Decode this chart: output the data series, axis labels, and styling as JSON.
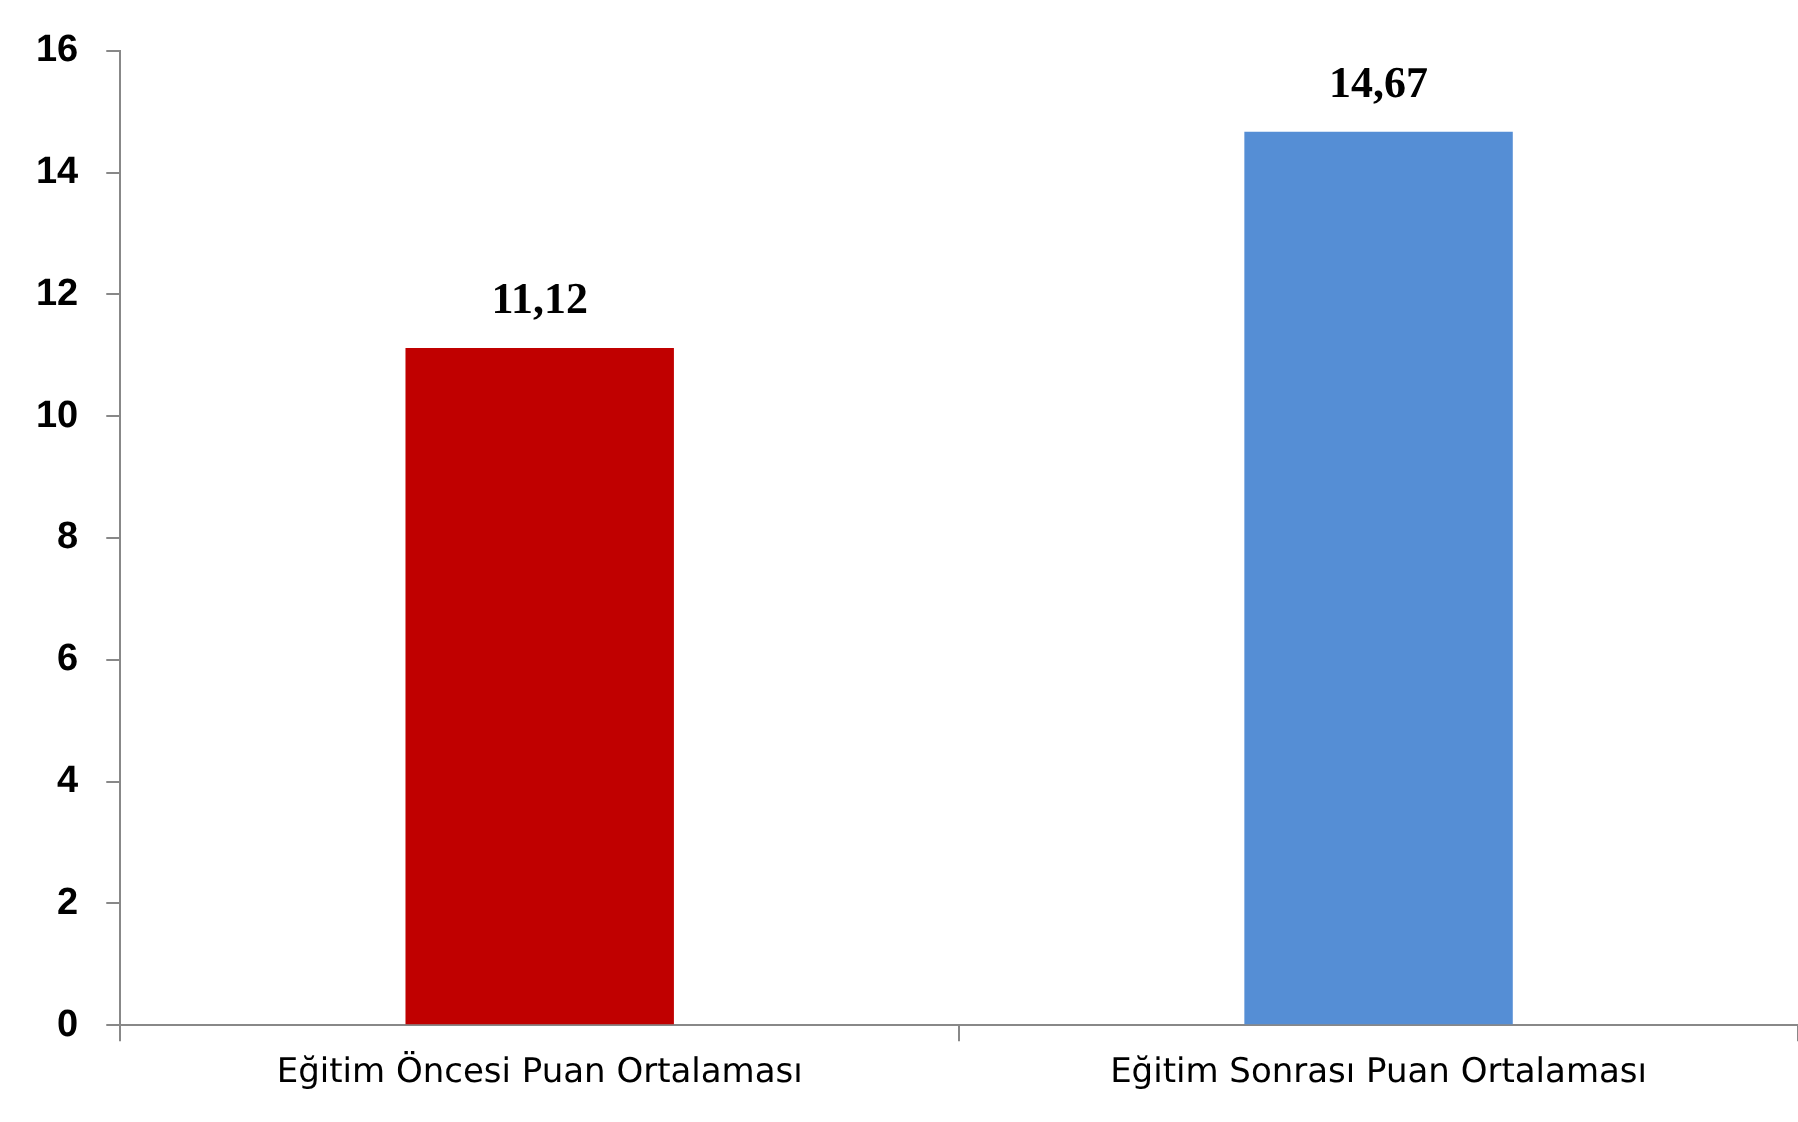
{
  "chart_data": {
    "type": "bar",
    "categories": [
      "Eğitim Öncesi Puan Ortalaması",
      "Eğitim Sonrası Puan Ortalaması"
    ],
    "values": [
      11.12,
      14.67
    ],
    "colors": [
      "#c00000",
      "#558ed5"
    ],
    "value_labels": [
      "11,12",
      "14,67"
    ],
    "ylim": [
      0,
      16
    ],
    "yticks": [
      0,
      2,
      4,
      6,
      8,
      10,
      12,
      14,
      16
    ],
    "grid": false,
    "legend": false
  }
}
